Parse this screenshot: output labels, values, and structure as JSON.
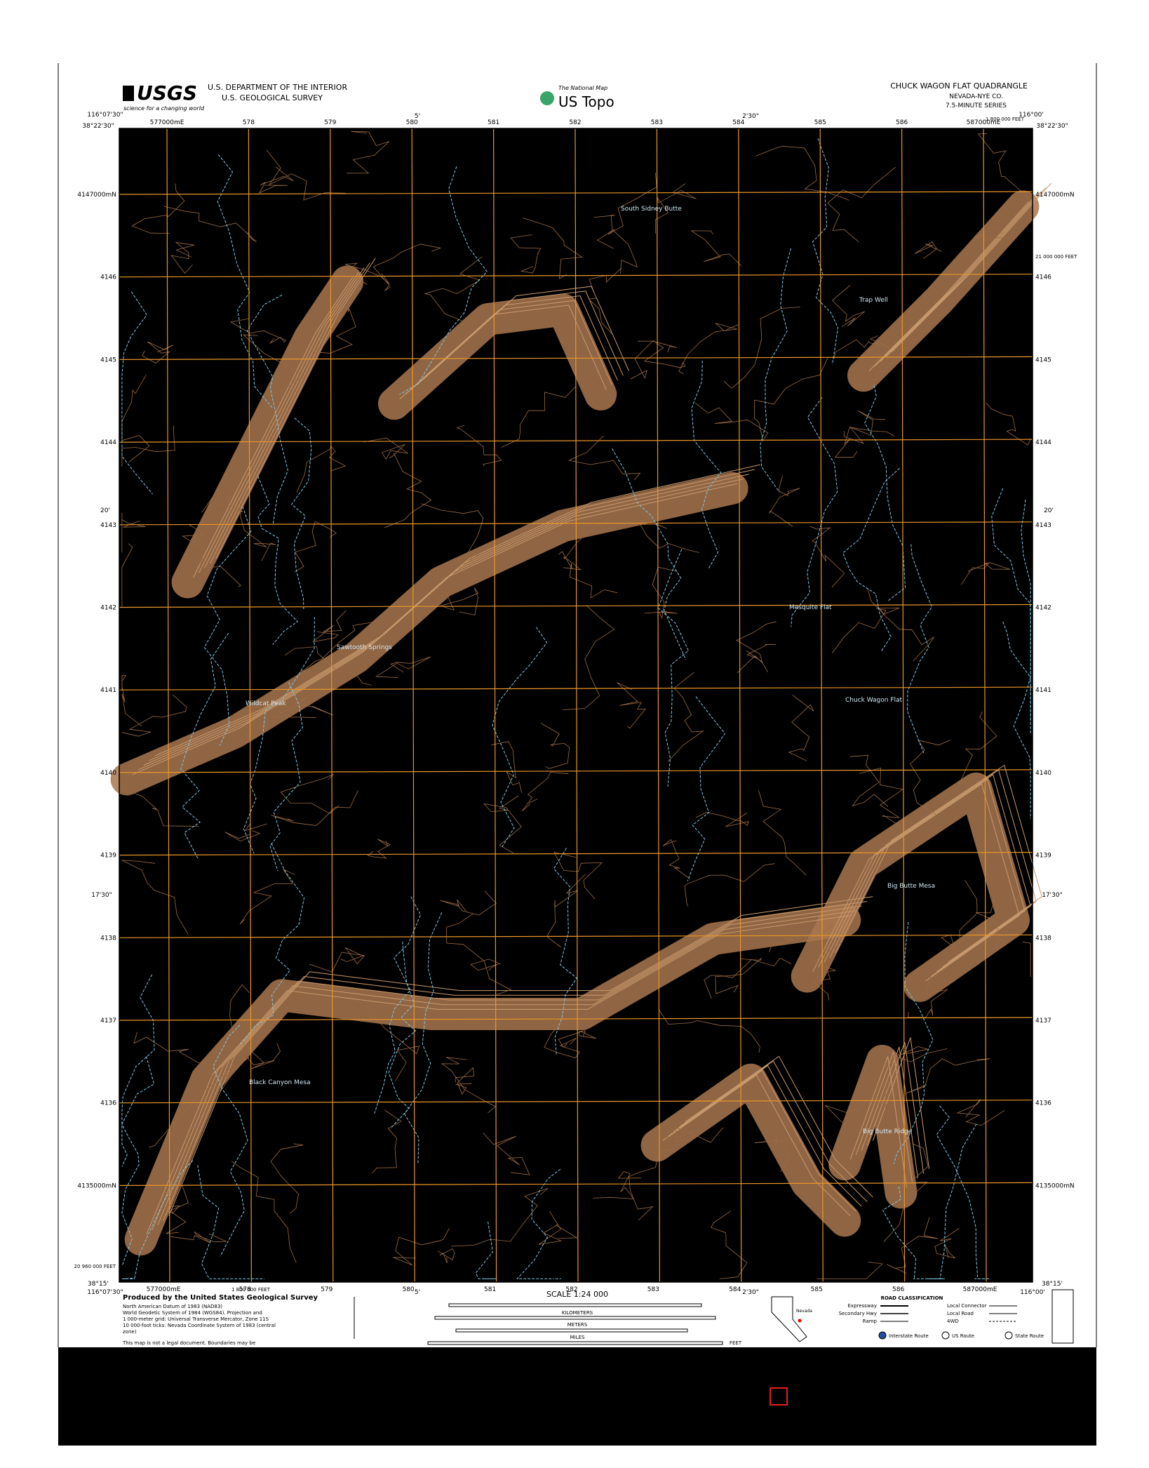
{
  "header": {
    "agency": "USGS",
    "tagline": "science for a changing world",
    "department": "U.S. DEPARTMENT OF THE INTERIOR",
    "survey": "U.S. GEOLOGICAL SURVEY",
    "program": "The National Map",
    "product": "US Topo",
    "quadrangle": "CHUCK WAGON FLAT QUADRANGLE",
    "state": "NEVADA-NYE CO.",
    "series": "7.5-MINUTE SERIES"
  },
  "map": {
    "corner_top_left_lon": "116°07'30\"",
    "corner_top_left_lat": "38°22'30\"",
    "corner_top_right_lon": "116°00'",
    "corner_top_right_lat": "38°22'30\"",
    "corner_bottom_left_lon": "116°07'30\"",
    "corner_bottom_left_lat": "38°15'",
    "corner_bottom_right_lon": "116°00'",
    "corner_bottom_right_lat": "38°15'",
    "top_minutes": [
      "5'",
      "2'30\""
    ],
    "side_minutes": [
      "20'",
      "17'30\""
    ],
    "eastings": [
      "577000mE",
      "578",
      "579",
      "580",
      "581",
      "582",
      "583",
      "584",
      "585",
      "586",
      "587000mE"
    ],
    "northings": [
      "4147000mN",
      "4146",
      "4145",
      "4144",
      "4143",
      "4142",
      "4141",
      "4140",
      "4139",
      "4138",
      "4137",
      "4136",
      "4135000mN"
    ],
    "state_plane_top": "1 800 000 FEET",
    "state_plane_right": "21 000 000 FEET",
    "state_plane_left": "20 960 000 FEET",
    "state_plane_bottom": "1 800 000 FEET",
    "places": [
      "South Sidney Butte",
      "Mesquite Flat",
      "Chuck Wagon Flat",
      "Big Butte Mesa",
      "Wildcat Peak",
      "Sawtooth Springs",
      "Black Canyon Mesa",
      "Big Butte Ridge",
      "Trap Well"
    ]
  },
  "footer": {
    "producer": "Produced by the United States Geological Survey",
    "datum_lines": [
      "North American Datum of 1983 (NAD83)",
      "World Geodetic System of 1984 (WGS84). Projection and",
      "1 000-meter grid: Universal Transverse Mercator, Zone 11S",
      "10 000-foot ticks: Nevada Coordinate System of 1983 (central",
      "zone)"
    ],
    "disclaimer": "This map is not a legal document. Boundaries may be",
    "scale": "SCALE 1:24 000",
    "kilometers": "KILOMETERS",
    "meters": "METERS",
    "miles": "MILES",
    "feet": "FEET",
    "road_title": "ROAD CLASSIFICATION",
    "roads_left": [
      "Expressway",
      "Secondary Hwy",
      "Ramp"
    ],
    "roads_right": [
      "Local Connector",
      "Local Road",
      "4WD"
    ],
    "routes": [
      "Interstate Route",
      "US Route",
      "State Route"
    ],
    "inset_label": "Nevada"
  }
}
